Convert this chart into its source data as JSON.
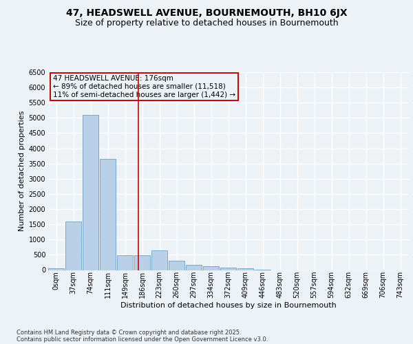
{
  "title_line1": "47, HEADSWELL AVENUE, BOURNEMOUTH, BH10 6JX",
  "title_line2": "Size of property relative to detached houses in Bournemouth",
  "xlabel": "Distribution of detached houses by size in Bournemouth",
  "ylabel": "Number of detached properties",
  "footer_line1": "Contains HM Land Registry data © Crown copyright and database right 2025.",
  "footer_line2": "Contains public sector information licensed under the Open Government Licence v3.0.",
  "bar_labels": [
    "0sqm",
    "37sqm",
    "74sqm",
    "111sqm",
    "149sqm",
    "186sqm",
    "223sqm",
    "260sqm",
    "297sqm",
    "334sqm",
    "372sqm",
    "409sqm",
    "446sqm",
    "483sqm",
    "520sqm",
    "557sqm",
    "594sqm",
    "632sqm",
    "669sqm",
    "706sqm",
    "743sqm"
  ],
  "bar_values": [
    50,
    1600,
    5100,
    3650,
    490,
    490,
    650,
    310,
    175,
    120,
    90,
    55,
    20,
    0,
    0,
    0,
    0,
    0,
    0,
    0,
    0
  ],
  "bar_color": "#b8d0e8",
  "bar_edge_color": "#6a9fc8",
  "annotation_text": "47 HEADSWELL AVENUE: 176sqm\n← 89% of detached houses are smaller (11,518)\n11% of semi-detached houses are larger (1,442) →",
  "vline_x_bar_index": 4.76,
  "ylim": [
    0,
    6500
  ],
  "yticks": [
    0,
    500,
    1000,
    1500,
    2000,
    2500,
    3000,
    3500,
    4000,
    4500,
    5000,
    5500,
    6000,
    6500
  ],
  "bg_color": "#edf2f7",
  "grid_color": "#ffffff",
  "annotation_box_color": "#cc0000",
  "title_fontsize": 10,
  "subtitle_fontsize": 9,
  "axis_label_fontsize": 8,
  "tick_fontsize": 7,
  "annotation_fontsize": 7.5,
  "footer_fontsize": 6
}
